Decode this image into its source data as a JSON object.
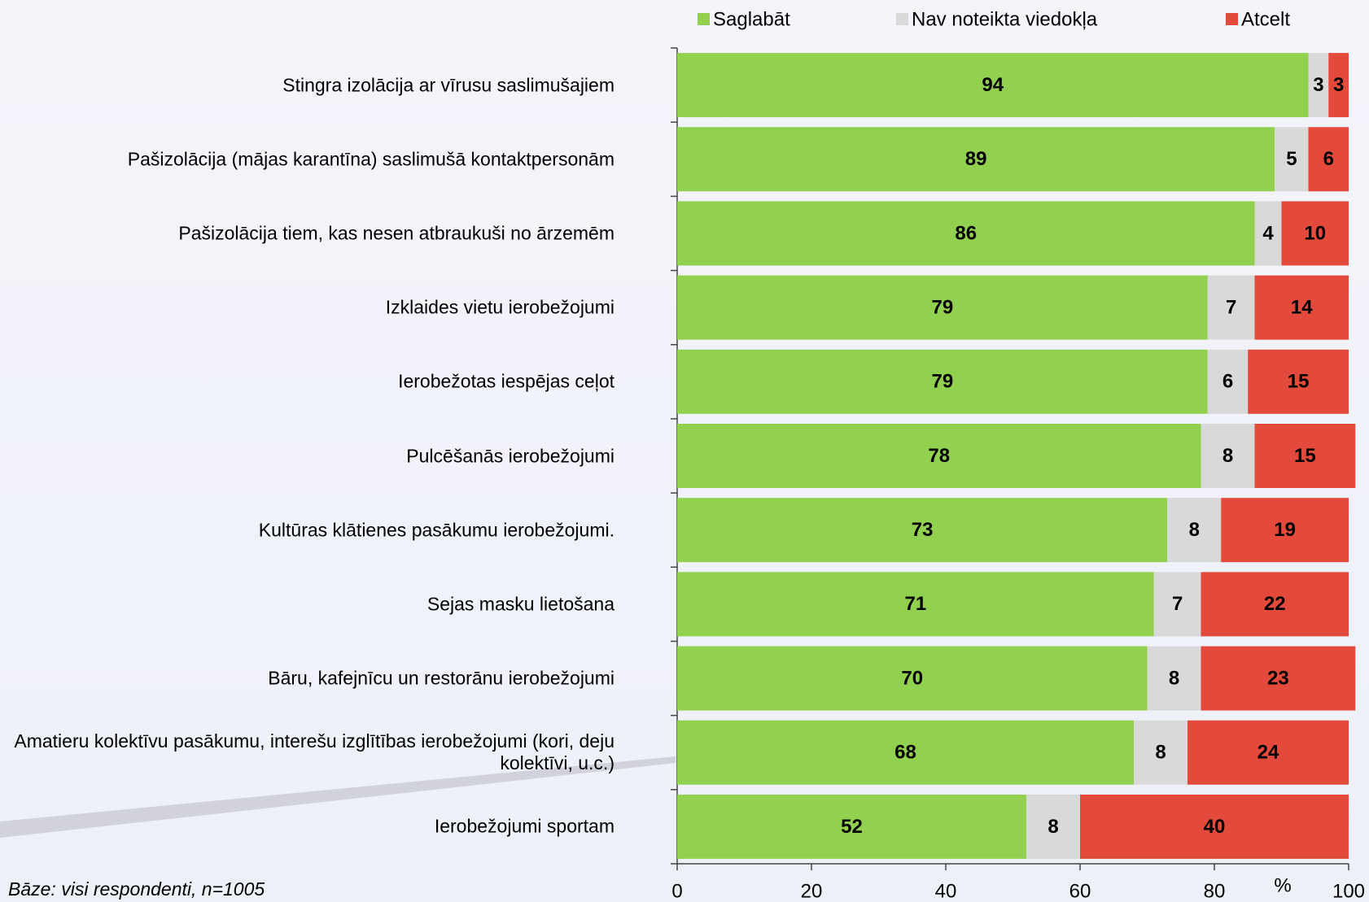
{
  "chart_data": {
    "type": "stacked_bar",
    "orientation": "horizontal",
    "categories": [
      "Stingra izolācija ar vīrusu saslimušajiem",
      "Pašizolācija (mājas karantīna) saslimušā kontaktpersonām",
      "Pašizolācija tiem, kas nesen atbraukuši no ārzemēm",
      "Izklaides vietu ierobežojumi",
      "Ierobežotas iespējas ceļot",
      "Pulcēšanās ierobežojumi",
      "Kultūras klātienes pasākumu ierobežojumi.",
      "Sejas masku lietošana",
      "Bāru, kafejnīcu un restorānu ierobežojumi",
      "Amatieru kolektīvu pasākumu, interešu izglītības ierobežojumi (kori, deju kolektīvi, u.c.)",
      "Ierobežojumi sportam"
    ],
    "series": [
      {
        "name": "Saglabāt",
        "color": "#92d050",
        "values": [
          94,
          89,
          86,
          79,
          79,
          78,
          73,
          71,
          70,
          68,
          52
        ]
      },
      {
        "name": "Nav noteikta viedokļa",
        "color": "#d9d9d9",
        "values": [
          3,
          5,
          4,
          7,
          6,
          8,
          8,
          7,
          8,
          8,
          8
        ]
      },
      {
        "name": "Atcelt",
        "color": "#e34a3b",
        "values": [
          3,
          6,
          10,
          14,
          15,
          15,
          19,
          22,
          23,
          24,
          40
        ]
      }
    ],
    "xlim": [
      0,
      100
    ],
    "xticks": [
      0,
      20,
      40,
      60,
      80,
      100
    ],
    "xlabel": "%",
    "legend": "top",
    "grid": false,
    "footnote": "Bāze: visi respondenti, n=1005"
  }
}
